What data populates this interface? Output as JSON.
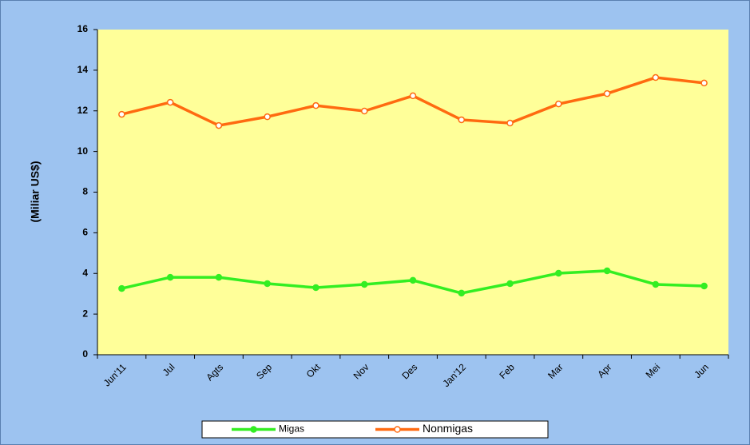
{
  "chart_data": {
    "type": "line",
    "y_label": "(Miliar US$)",
    "categories": [
      "Jun'11",
      "Jul",
      "Agts",
      "Sep",
      "Okt",
      "Nov",
      "Des",
      "Jan'12",
      "Feb",
      "Mar",
      "Apr",
      "Mei",
      "Jun"
    ],
    "series": [
      {
        "name": "Migas",
        "color": "#33ee22",
        "marker_fill": "#33ee22",
        "values": [
          3.26,
          3.81,
          3.81,
          3.5,
          3.3,
          3.46,
          3.66,
          3.03,
          3.5,
          4.01,
          4.13,
          3.46,
          3.38
        ]
      },
      {
        "name": "Nonmigas",
        "color": "#ff6a10",
        "marker_fill": "#ffffff",
        "values": [
          11.83,
          12.42,
          11.28,
          11.71,
          12.26,
          11.99,
          12.74,
          11.56,
          11.4,
          12.34,
          12.85,
          13.64,
          13.37
        ]
      }
    ],
    "ylim": [
      0,
      16
    ],
    "yticks": [
      0,
      2,
      4,
      6,
      8,
      10,
      12,
      14,
      16
    ],
    "grid": false,
    "legend": "bottom"
  }
}
